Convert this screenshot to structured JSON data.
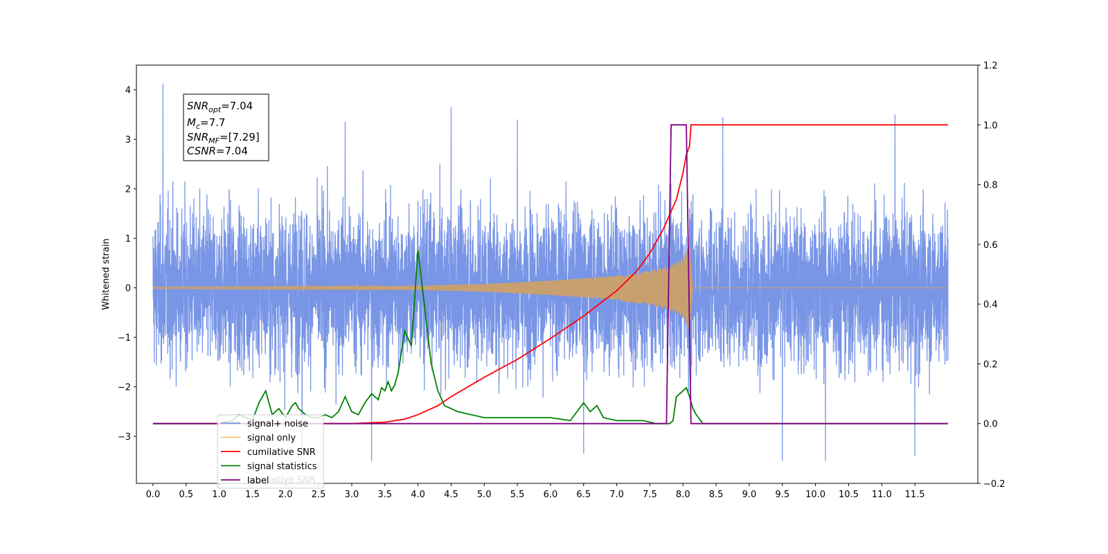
{
  "chart_data": {
    "type": "line",
    "ylabel": "Whitened strain",
    "xlim": [
      -0.25,
      12.45
    ],
    "ylim": [
      -3.95,
      4.5
    ],
    "y2lim": [
      -0.2,
      1.2
    ],
    "x_ticks": [
      0.0,
      0.5,
      1.0,
      1.5,
      2.0,
      2.5,
      3.0,
      3.5,
      4.0,
      4.5,
      5.0,
      5.5,
      6.0,
      6.5,
      7.0,
      7.5,
      8.0,
      8.5,
      9.0,
      9.5,
      10.0,
      10.5,
      11.0,
      11.5
    ],
    "x_tick_labels": [
      "0.0",
      "0.5",
      "1.0",
      "1.5",
      "2.0",
      "2.5",
      "3.0",
      "3.5",
      "4.0",
      "4.5",
      "5.0",
      "5.5",
      "6.0",
      "6.5",
      "7.0",
      "7.5",
      "8.0",
      "8.5",
      "9.0",
      "9.5",
      "10.0",
      "10.5",
      "11.0",
      "11.5"
    ],
    "y_ticks": [
      -3,
      -2,
      -1,
      0,
      1,
      2,
      3,
      4
    ],
    "y_tick_labels": [
      "−3",
      "−2",
      "−1",
      "0",
      "1",
      "2",
      "3",
      "4"
    ],
    "y2_ticks": [
      -0.2,
      0.0,
      0.2,
      0.4,
      0.6,
      0.8,
      1.0,
      1.2
    ],
    "y2_tick_labels": [
      "−0.2",
      "0.0",
      "0.2",
      "0.4",
      "0.6",
      "0.8",
      "1.0",
      "1.2"
    ],
    "annotation": {
      "snr_opt_label": "SNR",
      "snr_opt_sub": "opt",
      "snr_opt_value": "=7.04",
      "mc_label": "M",
      "mc_sub": "c",
      "mc_value": "=7.7",
      "snr_mf_label": "SNR",
      "snr_mf_sub": "MF",
      "snr_mf_value": "=[7.29]",
      "csnr_label": "CSNR",
      "csnr_value": "=7.04"
    },
    "legend_placement": "lower-left",
    "legend": [
      {
        "label": "signal+ noise",
        "color": "#7895e6"
      },
      {
        "label": "signal only",
        "color": "#ffbf66"
      },
      {
        "label": "cumilative SNR",
        "color": "#ff0000"
      },
      {
        "label": "signal statistics",
        "color": "#008000"
      },
      {
        "label": "label",
        "color": "#800080"
      }
    ],
    "legend_ghost_text": "cumilative SNR",
    "series": [
      {
        "name": "signal+ noise",
        "axis": "left",
        "color": "#7895e6",
        "description_kind": "noise_band",
        "x_range": [
          0.0,
          12.0
        ],
        "peaks": [
          [
            0.15,
            4.12
          ],
          [
            4.5,
            3.65
          ],
          [
            11.2,
            3.5
          ],
          [
            8.6,
            3.45
          ],
          [
            2.9,
            3.35
          ],
          [
            5.5,
            3.4
          ]
        ],
        "troughs": [
          [
            3.3,
            -3.5
          ],
          [
            9.5,
            -3.5
          ],
          [
            10.15,
            -3.5
          ],
          [
            6.5,
            -3.35
          ],
          [
            11.5,
            -3.4
          ],
          [
            2.25,
            -3.4
          ]
        ]
      },
      {
        "name": "signal only",
        "axis": "left",
        "color": "#c8a070",
        "envelope": [
          [
            0.0,
            0.02
          ],
          [
            4.0,
            0.04
          ],
          [
            5.0,
            0.08
          ],
          [
            6.0,
            0.15
          ],
          [
            7.0,
            0.25
          ],
          [
            7.5,
            0.35
          ],
          [
            7.8,
            0.45
          ],
          [
            8.0,
            0.6
          ],
          [
            8.1,
            0.9
          ],
          [
            8.15,
            0.0
          ],
          [
            12.0,
            0.0
          ]
        ]
      },
      {
        "name": "cumilative SNR",
        "axis": "right",
        "color": "#ff0000",
        "x": [
          0.0,
          3.0,
          3.5,
          3.8,
          4.0,
          4.3,
          4.5,
          5.0,
          5.5,
          6.0,
          6.5,
          7.0,
          7.3,
          7.5,
          7.7,
          7.9,
          8.0,
          8.05,
          8.1,
          8.12,
          12.0
        ],
        "y": [
          0.0,
          0.0,
          0.005,
          0.015,
          0.03,
          0.06,
          0.09,
          0.155,
          0.215,
          0.285,
          0.36,
          0.445,
          0.51,
          0.57,
          0.65,
          0.75,
          0.84,
          0.9,
          0.93,
          1.0,
          1.0
        ]
      },
      {
        "name": "signal statistics",
        "axis": "right",
        "color": "#008000",
        "x": [
          0.0,
          1.0,
          1.2,
          1.3,
          1.4,
          1.5,
          1.6,
          1.7,
          1.8,
          1.9,
          2.0,
          2.1,
          2.15,
          2.2,
          2.3,
          2.4,
          2.5,
          2.6,
          2.7,
          2.8,
          2.9,
          3.0,
          3.1,
          3.2,
          3.3,
          3.4,
          3.45,
          3.5,
          3.55,
          3.6,
          3.65,
          3.7,
          3.8,
          3.9,
          4.0,
          4.1,
          4.2,
          4.3,
          4.4,
          4.5,
          4.6,
          4.8,
          5.0,
          5.3,
          5.6,
          6.0,
          6.3,
          6.5,
          6.6,
          6.7,
          6.8,
          7.0,
          7.2,
          7.4,
          7.6,
          7.7,
          7.8,
          7.85,
          7.9,
          8.0,
          8.05,
          8.1,
          8.15,
          8.2,
          8.3,
          8.5,
          12.0
        ],
        "y": [
          0.0,
          0.0,
          0.01,
          0.03,
          0.02,
          0.01,
          0.07,
          0.11,
          0.03,
          0.05,
          0.02,
          0.06,
          0.07,
          0.05,
          0.03,
          0.02,
          0.02,
          0.03,
          0.02,
          0.04,
          0.09,
          0.04,
          0.03,
          0.07,
          0.1,
          0.08,
          0.12,
          0.11,
          0.14,
          0.11,
          0.13,
          0.17,
          0.31,
          0.26,
          0.58,
          0.39,
          0.2,
          0.11,
          0.06,
          0.05,
          0.04,
          0.03,
          0.02,
          0.02,
          0.02,
          0.02,
          0.01,
          0.07,
          0.04,
          0.06,
          0.02,
          0.01,
          0.01,
          0.01,
          0.0,
          0.0,
          0.0,
          0.01,
          0.09,
          0.11,
          0.12,
          0.09,
          0.05,
          0.03,
          0.0,
          0.0,
          0.0
        ]
      },
      {
        "name": "label",
        "axis": "right",
        "color": "#800080",
        "x": [
          0.0,
          7.75,
          7.82,
          8.05,
          8.12,
          12.0
        ],
        "y": [
          0.0,
          0.0,
          1.0,
          1.0,
          0.0,
          0.0
        ]
      }
    ]
  }
}
